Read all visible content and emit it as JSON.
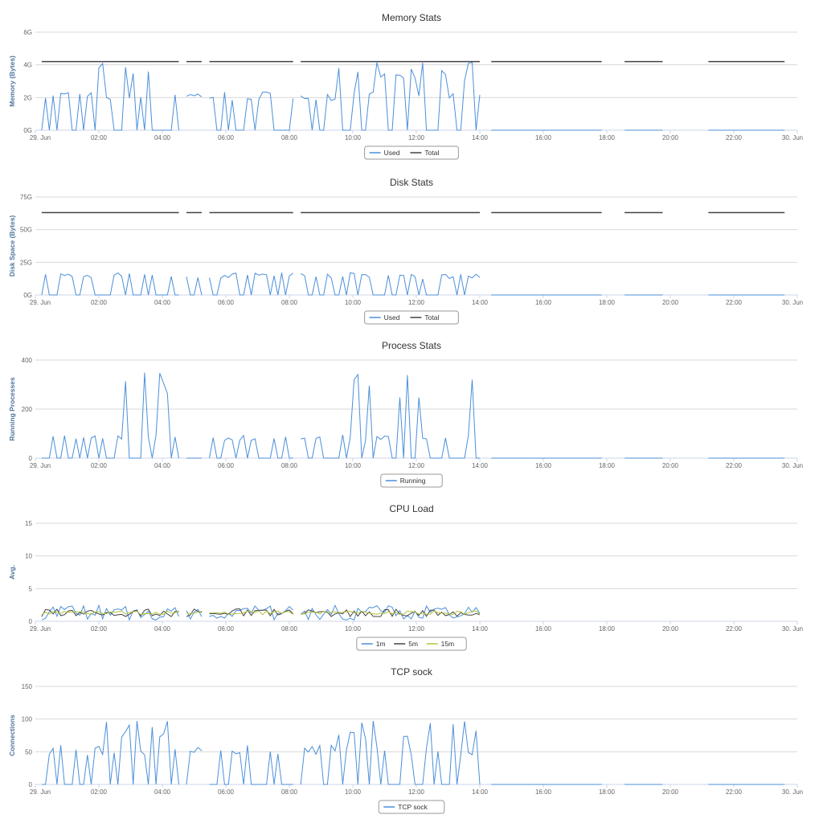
{
  "colors": {
    "series1": "#4b8fd9",
    "series2": "#434348",
    "series3": "#b2c23a"
  },
  "x_ticks": [
    "29. Jun",
    "02:00",
    "04:00",
    "06:00",
    "08:00",
    "10:00",
    "12:00",
    "14:00",
    "16:00",
    "18:00",
    "20:00",
    "22:00",
    "30. Jun"
  ],
  "chart_data": [
    {
      "type": "line",
      "title": "Memory Stats",
      "ylabel": "Memory (Bytes)",
      "ylim": [
        0,
        6
      ],
      "y_ticks": [
        "0G",
        "2G",
        "4G",
        "6G"
      ],
      "xlim": [
        0,
        24
      ],
      "legend_placement": "bottom-center",
      "series": [
        {
          "name": "Used",
          "color": "#4b8fd9",
          "kind": "spiky",
          "low": 0,
          "high": 2.4,
          "peak": 4.2
        },
        {
          "name": "Total",
          "color": "#434348",
          "kind": "flat",
          "value": 4.2
        }
      ]
    },
    {
      "type": "line",
      "title": "Disk Stats",
      "ylabel": "Disk Space (Bytes)",
      "ylim": [
        0,
        75
      ],
      "y_ticks": [
        "0G",
        "25G",
        "50G",
        "75G"
      ],
      "xlim": [
        0,
        24
      ],
      "legend_placement": "bottom-center",
      "series": [
        {
          "name": "Used",
          "color": "#4b8fd9",
          "kind": "spiky",
          "low": 0,
          "high": 17,
          "peak": 17
        },
        {
          "name": "Total",
          "color": "#434348",
          "kind": "flat",
          "value": 63
        }
      ]
    },
    {
      "type": "line",
      "title": "Process Stats",
      "ylabel": "Running Processes",
      "ylim": [
        0,
        400
      ],
      "y_ticks": [
        "0",
        "200",
        "400"
      ],
      "xlim": [
        0,
        24
      ],
      "legend_placement": "bottom-center",
      "series": [
        {
          "name": "Running",
          "color": "#4b8fd9",
          "kind": "spiky",
          "low": 0,
          "high": 95,
          "peak": 350
        }
      ]
    },
    {
      "type": "line",
      "title": "CPU Load",
      "ylabel": "Avg.",
      "ylim": [
        0,
        15
      ],
      "y_ticks": [
        "0",
        "5",
        "10",
        "15"
      ],
      "xlim": [
        0,
        24
      ],
      "legend_placement": "bottom-center",
      "series": [
        {
          "name": "1m",
          "color": "#4b8fd9",
          "kind": "noise",
          "base": 1.3,
          "amp": 1.2
        },
        {
          "name": "5m",
          "color": "#434348",
          "kind": "noise",
          "base": 1.3,
          "amp": 0.6
        },
        {
          "name": "15m",
          "color": "#b2c23a",
          "kind": "noise",
          "base": 1.3,
          "amp": 0.3
        }
      ]
    },
    {
      "type": "line",
      "title": "TCP sock",
      "ylabel": "Connections",
      "ylim": [
        0,
        150
      ],
      "y_ticks": [
        "0",
        "50",
        "100",
        "150"
      ],
      "xlim": [
        0,
        24
      ],
      "legend_placement": "bottom-center",
      "series": [
        {
          "name": "TCP sock",
          "color": "#4b8fd9",
          "kind": "spiky",
          "low": 0,
          "high": 60,
          "peak": 100
        }
      ]
    }
  ]
}
